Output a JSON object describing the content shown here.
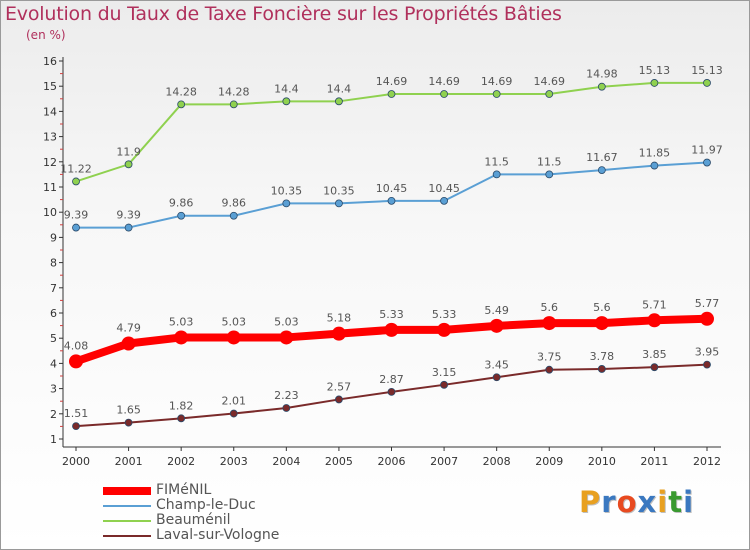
{
  "title": "Evolution du Taux de Taxe Foncière sur les Propriétés Bâties",
  "subtitle": "(en %)",
  "brand": {
    "letters": [
      "P",
      "r",
      "o",
      "x",
      "i",
      "t",
      "i"
    ],
    "colors": [
      "#e8a020",
      "#3a78c0",
      "#e84a20",
      "#3a78c0",
      "#e8a020",
      "#3a9a30",
      "#3a78c0"
    ]
  },
  "chart_data": {
    "type": "line",
    "title": "Evolution du Taux de Taxe Foncière sur les Propriétés Bâties",
    "ylabel": "(en %)",
    "xlabel": "",
    "x": [
      "2000",
      "2001",
      "2002",
      "2003",
      "2004",
      "2005",
      "2006",
      "2007",
      "2008",
      "2009",
      "2010",
      "2011",
      "2012"
    ],
    "ylim": [
      1,
      16
    ],
    "yticks": [
      "1",
      "2",
      "3",
      "4",
      "5",
      "6",
      "7",
      "8",
      "9",
      "10",
      "11",
      "12",
      "13",
      "14",
      "15",
      "16"
    ],
    "grid": false,
    "legend_position": "bottom-left",
    "series": [
      {
        "name": "FIMéNIL",
        "color": "#ff0000",
        "values": [
          4.08,
          4.79,
          5.03,
          5.03,
          5.03,
          5.18,
          5.33,
          5.33,
          5.49,
          5.6,
          5.6,
          5.71,
          5.77
        ],
        "labels": [
          "4.08",
          "4.79",
          "5.03",
          "5.03",
          "5.03",
          "5.18",
          "5.33",
          "5.33",
          "5.49",
          "5.6",
          "5.6",
          "5.71",
          "5.77"
        ]
      },
      {
        "name": "Champ-le-Duc",
        "color": "#5a9fd4",
        "values": [
          9.39,
          9.39,
          9.86,
          9.86,
          10.35,
          10.35,
          10.45,
          10.45,
          11.5,
          11.5,
          11.67,
          11.85,
          11.97
        ],
        "labels": [
          "9.39",
          "9.39",
          "9.86",
          "9.86",
          "10.35",
          "10.35",
          "10.45",
          "10.45",
          "11.5",
          "11.5",
          "11.67",
          "11.85",
          "11.97"
        ]
      },
      {
        "name": "Beauménil",
        "color": "#8fd14f",
        "values": [
          11.22,
          11.9,
          14.28,
          14.28,
          14.4,
          14.4,
          14.69,
          14.69,
          14.69,
          14.69,
          14.98,
          15.13,
          15.13
        ],
        "labels": [
          "11.22",
          "11.9",
          "14.28",
          "14.28",
          "14.4",
          "14.4",
          "14.69",
          "14.69",
          "14.69",
          "14.69",
          "14.98",
          "15.13",
          "15.13"
        ]
      },
      {
        "name": "Laval-sur-Vologne",
        "color": "#7a2a2a",
        "values": [
          1.51,
          1.65,
          1.82,
          2.01,
          2.23,
          2.57,
          2.87,
          3.15,
          3.45,
          3.75,
          3.78,
          3.85,
          3.95
        ],
        "labels": [
          "1.51",
          "1.65",
          "1.82",
          "2.01",
          "2.23",
          "2.57",
          "2.87",
          "3.15",
          "3.45",
          "3.75",
          "3.78",
          "3.85",
          "3.95"
        ]
      }
    ]
  }
}
